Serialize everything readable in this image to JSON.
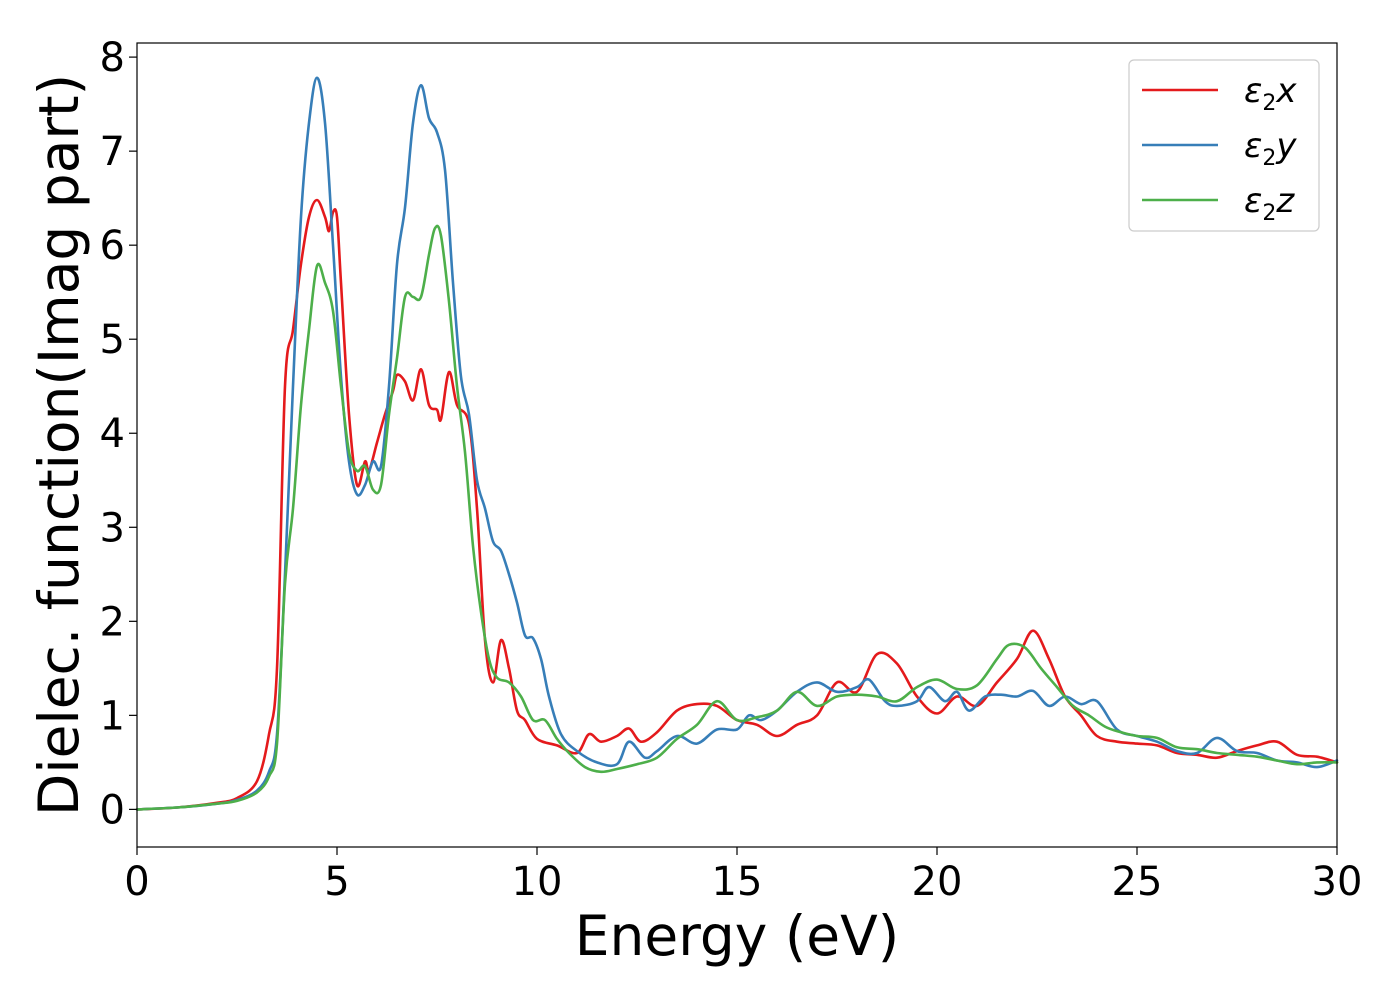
{
  "chart_data": {
    "type": "line",
    "xlabel": "Energy (eV)",
    "ylabel": "Dielec. function(Imag part)",
    "xlim": [
      0,
      30
    ],
    "ylim": [
      -0.4,
      8.15
    ],
    "xticks": [
      "0",
      "5",
      "10",
      "15",
      "20",
      "25",
      "30"
    ],
    "yticks": [
      "0",
      "1",
      "2",
      "3",
      "4",
      "5",
      "6",
      "7",
      "8"
    ],
    "legend": {
      "position": "top-right",
      "entries": [
        {
          "prefix": "ε",
          "sub": "2",
          "suffix": "x"
        },
        {
          "prefix": "ε",
          "sub": "2",
          "suffix": "y"
        },
        {
          "prefix": "ε",
          "sub": "2",
          "suffix": "z"
        }
      ]
    },
    "grid": false,
    "series": [
      {
        "name": "ε2x",
        "color": "#e41a1c",
        "points": [
          [
            0,
            0
          ],
          [
            1,
            0.02
          ],
          [
            2,
            0.07
          ],
          [
            2.5,
            0.12
          ],
          [
            3,
            0.3
          ],
          [
            3.3,
            0.8
          ],
          [
            3.5,
            1.5
          ],
          [
            3.7,
            4.5
          ],
          [
            3.9,
            5.1
          ],
          [
            4.1,
            5.8
          ],
          [
            4.3,
            6.3
          ],
          [
            4.5,
            6.48
          ],
          [
            4.7,
            6.3
          ],
          [
            4.8,
            6.15
          ],
          [
            4.9,
            6.35
          ],
          [
            5.0,
            6.3
          ],
          [
            5.1,
            5.6
          ],
          [
            5.3,
            4.2
          ],
          [
            5.5,
            3.45
          ],
          [
            5.7,
            3.7
          ],
          [
            5.8,
            3.6
          ],
          [
            6.0,
            3.9
          ],
          [
            6.2,
            4.2
          ],
          [
            6.4,
            4.45
          ],
          [
            6.5,
            4.62
          ],
          [
            6.7,
            4.55
          ],
          [
            6.9,
            4.35
          ],
          [
            7.1,
            4.68
          ],
          [
            7.3,
            4.3
          ],
          [
            7.5,
            4.25
          ],
          [
            7.6,
            4.15
          ],
          [
            7.8,
            4.65
          ],
          [
            8.0,
            4.3
          ],
          [
            8.3,
            4.1
          ],
          [
            8.5,
            3.2
          ],
          [
            8.7,
            1.8
          ],
          [
            8.9,
            1.35
          ],
          [
            9.1,
            1.8
          ],
          [
            9.3,
            1.5
          ],
          [
            9.5,
            1.05
          ],
          [
            9.7,
            0.95
          ],
          [
            10,
            0.75
          ],
          [
            10.5,
            0.68
          ],
          [
            11,
            0.6
          ],
          [
            11.3,
            0.8
          ],
          [
            11.6,
            0.72
          ],
          [
            12,
            0.78
          ],
          [
            12.3,
            0.86
          ],
          [
            12.6,
            0.72
          ],
          [
            13,
            0.82
          ],
          [
            13.5,
            1.05
          ],
          [
            14,
            1.12
          ],
          [
            14.5,
            1.1
          ],
          [
            15,
            0.95
          ],
          [
            15.5,
            0.9
          ],
          [
            16,
            0.78
          ],
          [
            16.5,
            0.9
          ],
          [
            17,
            1.0
          ],
          [
            17.5,
            1.35
          ],
          [
            18,
            1.25
          ],
          [
            18.5,
            1.65
          ],
          [
            19,
            1.55
          ],
          [
            19.5,
            1.2
          ],
          [
            20,
            1.02
          ],
          [
            20.5,
            1.2
          ],
          [
            21,
            1.1
          ],
          [
            21.5,
            1.35
          ],
          [
            22,
            1.6
          ],
          [
            22.4,
            1.9
          ],
          [
            22.8,
            1.6
          ],
          [
            23.2,
            1.2
          ],
          [
            23.6,
            1.0
          ],
          [
            24,
            0.78
          ],
          [
            24.5,
            0.72
          ],
          [
            25,
            0.7
          ],
          [
            25.5,
            0.68
          ],
          [
            26,
            0.6
          ],
          [
            26.5,
            0.58
          ],
          [
            27,
            0.55
          ],
          [
            27.5,
            0.62
          ],
          [
            28,
            0.68
          ],
          [
            28.5,
            0.72
          ],
          [
            29,
            0.58
          ],
          [
            29.5,
            0.56
          ],
          [
            30,
            0.5
          ]
        ]
      },
      {
        "name": "ε2y",
        "color": "#377eb8",
        "points": [
          [
            0,
            0
          ],
          [
            1,
            0.02
          ],
          [
            2,
            0.06
          ],
          [
            2.5,
            0.1
          ],
          [
            3,
            0.2
          ],
          [
            3.3,
            0.4
          ],
          [
            3.5,
            0.8
          ],
          [
            3.7,
            2.5
          ],
          [
            3.9,
            4.5
          ],
          [
            4.1,
            6.3
          ],
          [
            4.3,
            7.3
          ],
          [
            4.5,
            7.78
          ],
          [
            4.7,
            7.3
          ],
          [
            4.9,
            6.0
          ],
          [
            5.1,
            4.6
          ],
          [
            5.3,
            3.7
          ],
          [
            5.5,
            3.35
          ],
          [
            5.7,
            3.45
          ],
          [
            5.9,
            3.7
          ],
          [
            6.1,
            3.65
          ],
          [
            6.3,
            4.5
          ],
          [
            6.5,
            5.8
          ],
          [
            6.7,
            6.4
          ],
          [
            6.9,
            7.3
          ],
          [
            7.1,
            7.7
          ],
          [
            7.3,
            7.35
          ],
          [
            7.5,
            7.2
          ],
          [
            7.7,
            6.8
          ],
          [
            7.9,
            5.6
          ],
          [
            8.1,
            4.6
          ],
          [
            8.3,
            4.2
          ],
          [
            8.5,
            3.5
          ],
          [
            8.7,
            3.2
          ],
          [
            8.9,
            2.85
          ],
          [
            9.1,
            2.75
          ],
          [
            9.3,
            2.5
          ],
          [
            9.5,
            2.2
          ],
          [
            9.7,
            1.85
          ],
          [
            9.9,
            1.82
          ],
          [
            10.1,
            1.6
          ],
          [
            10.3,
            1.2
          ],
          [
            10.6,
            0.8
          ],
          [
            11,
            0.62
          ],
          [
            11.5,
            0.5
          ],
          [
            12,
            0.48
          ],
          [
            12.3,
            0.72
          ],
          [
            12.7,
            0.55
          ],
          [
            13,
            0.62
          ],
          [
            13.5,
            0.78
          ],
          [
            14,
            0.7
          ],
          [
            14.5,
            0.85
          ],
          [
            15,
            0.85
          ],
          [
            15.3,
            1.0
          ],
          [
            15.6,
            0.95
          ],
          [
            16,
            1.05
          ],
          [
            16.5,
            1.25
          ],
          [
            17,
            1.35
          ],
          [
            17.5,
            1.25
          ],
          [
            18,
            1.3
          ],
          [
            18.3,
            1.38
          ],
          [
            18.7,
            1.15
          ],
          [
            19,
            1.1
          ],
          [
            19.5,
            1.15
          ],
          [
            19.8,
            1.3
          ],
          [
            20.2,
            1.15
          ],
          [
            20.5,
            1.25
          ],
          [
            20.8,
            1.05
          ],
          [
            21.2,
            1.2
          ],
          [
            21.6,
            1.22
          ],
          [
            22,
            1.2
          ],
          [
            22.4,
            1.26
          ],
          [
            22.8,
            1.1
          ],
          [
            23.2,
            1.2
          ],
          [
            23.6,
            1.12
          ],
          [
            24,
            1.15
          ],
          [
            24.5,
            0.85
          ],
          [
            25,
            0.78
          ],
          [
            25.5,
            0.72
          ],
          [
            26,
            0.62
          ],
          [
            26.5,
            0.6
          ],
          [
            27,
            0.76
          ],
          [
            27.5,
            0.62
          ],
          [
            28,
            0.6
          ],
          [
            28.5,
            0.52
          ],
          [
            29,
            0.5
          ],
          [
            29.5,
            0.45
          ],
          [
            30,
            0.52
          ]
        ]
      },
      {
        "name": "ε2z",
        "color": "#4daf4a",
        "points": [
          [
            0,
            0
          ],
          [
            1,
            0.02
          ],
          [
            2,
            0.06
          ],
          [
            2.5,
            0.09
          ],
          [
            3,
            0.18
          ],
          [
            3.3,
            0.35
          ],
          [
            3.5,
            0.7
          ],
          [
            3.7,
            2.4
          ],
          [
            3.9,
            3.2
          ],
          [
            4.1,
            4.3
          ],
          [
            4.3,
            5.1
          ],
          [
            4.5,
            5.78
          ],
          [
            4.7,
            5.6
          ],
          [
            4.9,
            5.3
          ],
          [
            5.1,
            4.5
          ],
          [
            5.3,
            3.8
          ],
          [
            5.5,
            3.6
          ],
          [
            5.7,
            3.65
          ],
          [
            5.9,
            3.4
          ],
          [
            6.1,
            3.45
          ],
          [
            6.3,
            4.2
          ],
          [
            6.5,
            4.8
          ],
          [
            6.7,
            5.45
          ],
          [
            6.9,
            5.45
          ],
          [
            7.1,
            5.45
          ],
          [
            7.3,
            5.9
          ],
          [
            7.45,
            6.18
          ],
          [
            7.6,
            6.1
          ],
          [
            7.8,
            5.4
          ],
          [
            8.0,
            4.5
          ],
          [
            8.2,
            3.8
          ],
          [
            8.4,
            2.8
          ],
          [
            8.6,
            2.1
          ],
          [
            8.8,
            1.6
          ],
          [
            9.0,
            1.4
          ],
          [
            9.3,
            1.35
          ],
          [
            9.6,
            1.2
          ],
          [
            9.9,
            0.95
          ],
          [
            10.2,
            0.95
          ],
          [
            10.5,
            0.75
          ],
          [
            10.8,
            0.6
          ],
          [
            11.2,
            0.45
          ],
          [
            11.6,
            0.4
          ],
          [
            12,
            0.43
          ],
          [
            12.5,
            0.48
          ],
          [
            13,
            0.55
          ],
          [
            13.5,
            0.75
          ],
          [
            14,
            0.9
          ],
          [
            14.5,
            1.15
          ],
          [
            15,
            0.95
          ],
          [
            15.5,
            0.98
          ],
          [
            16,
            1.05
          ],
          [
            16.5,
            1.25
          ],
          [
            17,
            1.1
          ],
          [
            17.5,
            1.2
          ],
          [
            18,
            1.22
          ],
          [
            18.5,
            1.2
          ],
          [
            19,
            1.15
          ],
          [
            19.5,
            1.3
          ],
          [
            20,
            1.38
          ],
          [
            20.5,
            1.28
          ],
          [
            21,
            1.32
          ],
          [
            21.5,
            1.6
          ],
          [
            21.8,
            1.75
          ],
          [
            22.2,
            1.72
          ],
          [
            22.6,
            1.5
          ],
          [
            23,
            1.3
          ],
          [
            23.4,
            1.1
          ],
          [
            23.8,
            1.0
          ],
          [
            24.2,
            0.88
          ],
          [
            24.6,
            0.82
          ],
          [
            25,
            0.78
          ],
          [
            25.5,
            0.76
          ],
          [
            26,
            0.66
          ],
          [
            26.5,
            0.64
          ],
          [
            27,
            0.6
          ],
          [
            27.5,
            0.58
          ],
          [
            28,
            0.56
          ],
          [
            28.5,
            0.52
          ],
          [
            29,
            0.48
          ],
          [
            29.5,
            0.5
          ],
          [
            30,
            0.5
          ]
        ]
      }
    ]
  }
}
